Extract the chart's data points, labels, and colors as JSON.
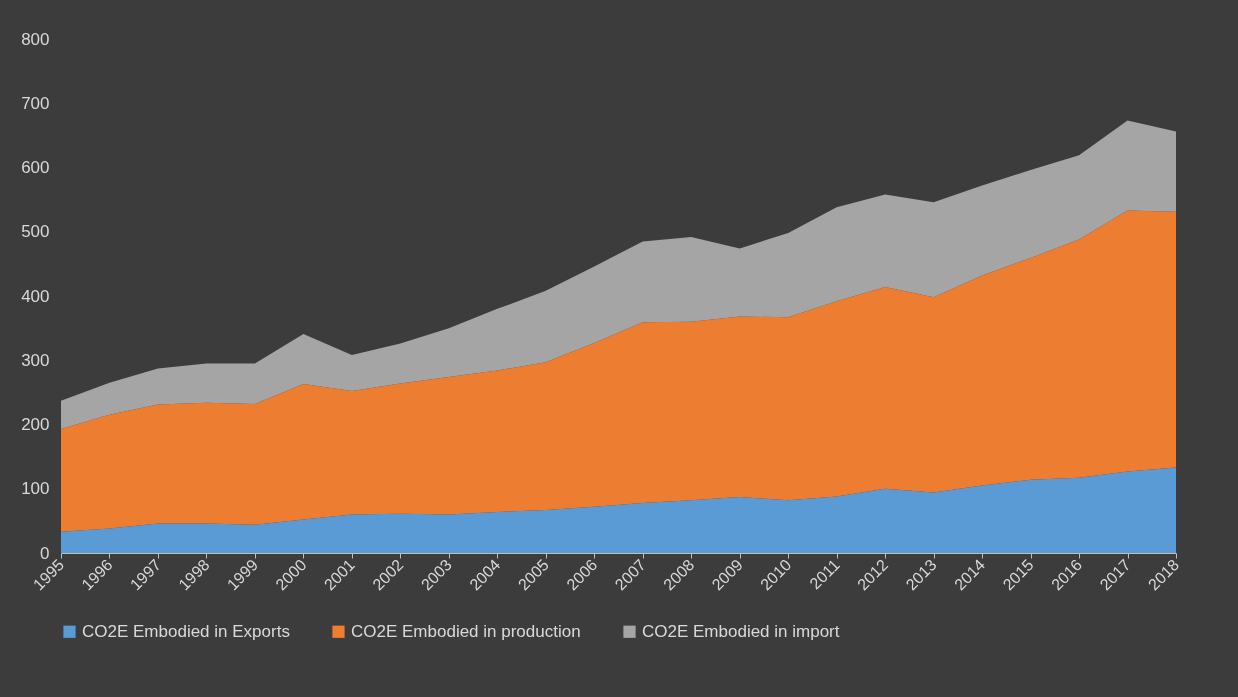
{
  "chart_data": {
    "type": "area",
    "stacked": true,
    "categories": [
      "1995",
      "1996",
      "1997",
      "1998",
      "1999",
      "2000",
      "2001",
      "2002",
      "2003",
      "2004",
      "2005",
      "2006",
      "2007",
      "2008",
      "2009",
      "2010",
      "2011",
      "2012",
      "2013",
      "2014",
      "2015",
      "2016",
      "2017",
      "2018"
    ],
    "series": [
      {
        "name": "CO2E Embodied in Exports",
        "color": "#5b9bd5",
        "values": [
          33,
          38,
          46,
          46,
          44,
          52,
          60,
          61,
          60,
          64,
          67,
          72,
          78,
          82,
          87,
          82,
          88,
          100,
          94,
          105,
          114,
          117,
          127,
          133
        ]
      },
      {
        "name": "CO2E Embodied in production",
        "color": "#ed7d31",
        "values": [
          160,
          177,
          185,
          188,
          188,
          211,
          192,
          203,
          214,
          220,
          230,
          255,
          281,
          278,
          281,
          285,
          304,
          314,
          304,
          327,
          345,
          371,
          406,
          398
        ]
      },
      {
        "name": "CO2E Embodied in import",
        "color": "#a5a5a5",
        "values": [
          44,
          50,
          56,
          61,
          63,
          78,
          56,
          62,
          76,
          96,
          111,
          119,
          126,
          132,
          106,
          131,
          146,
          144,
          148,
          140,
          137,
          131,
          140,
          125
        ]
      }
    ],
    "ylim": [
      0,
      800
    ],
    "yticks": [
      0,
      100,
      200,
      300,
      400,
      500,
      600,
      700,
      800
    ],
    "grid": false,
    "legend": "bottom"
  }
}
